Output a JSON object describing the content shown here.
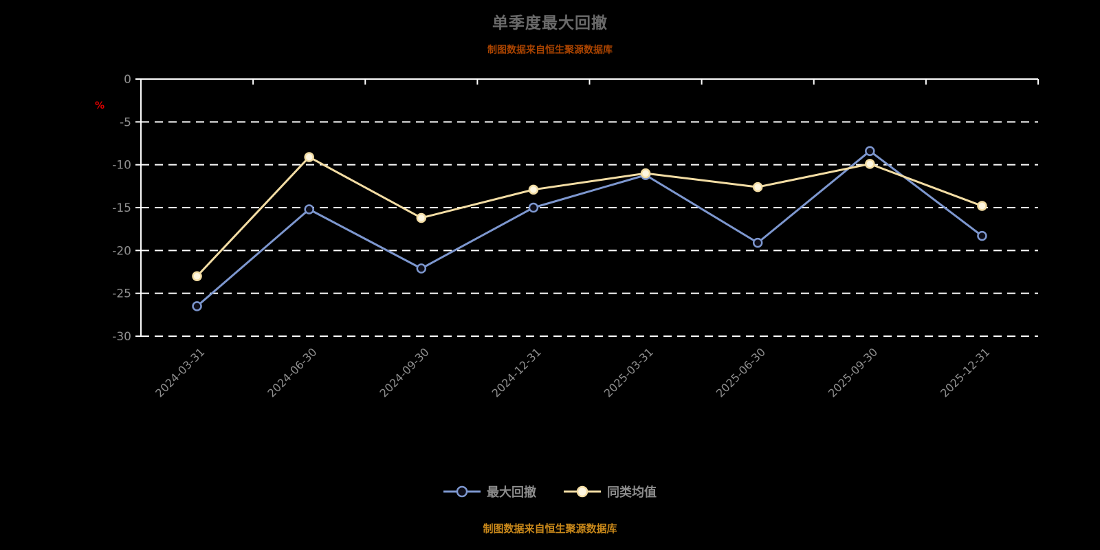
{
  "title": "单季度最大回撤",
  "subtitle": "制图数据来自恒生聚源数据库",
  "source_note": "制图数据来自恒生聚源数据库",
  "colors": {
    "background": "#000000",
    "title": "#6a6a6a",
    "subtitle": "#a84300",
    "source": "#c9881a",
    "axis": "#ffffff",
    "tick_label": "#8f8f8f",
    "percent_label": "#e00000",
    "legend_label": "#8c8c8c"
  },
  "y_axis": {
    "unit": "%",
    "ticks": [
      0,
      -5,
      -10,
      -15,
      -20,
      -25,
      -30
    ],
    "min": -30,
    "max": 0
  },
  "chart_data": {
    "type": "line",
    "title": "单季度最大回撤",
    "categories": [
      "2024-03-31",
      "2024-06-30",
      "2024-09-30",
      "2024-12-31",
      "2025-03-31",
      "2025-06-30",
      "2025-09-30",
      "2025-12-31"
    ],
    "series": [
      {
        "name": "最大回撤",
        "color": "#7d97cf",
        "marker_fill": "#0d0d18",
        "values": [
          -26.5,
          -15.2,
          -22.1,
          -15.0,
          -11.2,
          -19.1,
          -8.4,
          -18.3
        ]
      },
      {
        "name": "同类均值",
        "color": "#f3dda4",
        "marker_fill": "#fdf6e0",
        "values": [
          -23.0,
          -9.1,
          -16.2,
          -12.9,
          -11.0,
          -12.6,
          -9.9,
          -14.8
        ]
      }
    ],
    "ylim": [
      -30,
      0
    ],
    "ylabel": "%",
    "grid": "horizontal-dashed",
    "legend_position": "bottom"
  }
}
